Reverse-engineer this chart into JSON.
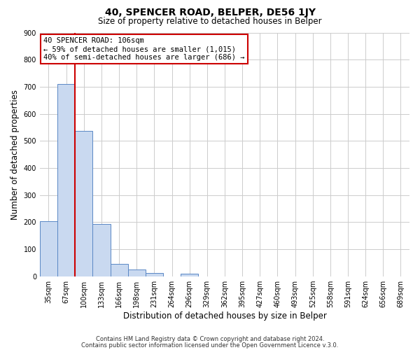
{
  "title": "40, SPENCER ROAD, BELPER, DE56 1JY",
  "subtitle": "Size of property relative to detached houses in Belper",
  "xlabel": "Distribution of detached houses by size in Belper",
  "ylabel": "Number of detached properties",
  "bar_labels": [
    "35sqm",
    "67sqm",
    "100sqm",
    "133sqm",
    "166sqm",
    "198sqm",
    "231sqm",
    "264sqm",
    "296sqm",
    "329sqm",
    "362sqm",
    "395sqm",
    "427sqm",
    "460sqm",
    "493sqm",
    "525sqm",
    "558sqm",
    "591sqm",
    "624sqm",
    "656sqm",
    "689sqm"
  ],
  "bar_values": [
    204,
    710,
    536,
    193,
    46,
    26,
    12,
    0,
    9,
    0,
    0,
    0,
    0,
    0,
    0,
    0,
    0,
    0,
    0,
    0,
    0
  ],
  "bar_color": "#c9d9f0",
  "bar_edge_color": "#5a87c5",
  "vline_color": "#cc0000",
  "ylim": [
    0,
    900
  ],
  "yticks": [
    0,
    100,
    200,
    300,
    400,
    500,
    600,
    700,
    800,
    900
  ],
  "annotation_title": "40 SPENCER ROAD: 106sqm",
  "annotation_line1": "← 59% of detached houses are smaller (1,015)",
  "annotation_line2": "40% of semi-detached houses are larger (686) →",
  "annotation_box_color": "#ffffff",
  "annotation_box_edge": "#cc0000",
  "footer_line1": "Contains HM Land Registry data © Crown copyright and database right 2024.",
  "footer_line2": "Contains public sector information licensed under the Open Government Licence v.3.0.",
  "background_color": "#ffffff",
  "grid_color": "#cccccc",
  "title_fontsize": 10,
  "subtitle_fontsize": 8.5,
  "xlabel_fontsize": 8.5,
  "ylabel_fontsize": 8.5,
  "tick_fontsize": 7,
  "annotation_fontsize": 7.5,
  "footer_fontsize": 6
}
